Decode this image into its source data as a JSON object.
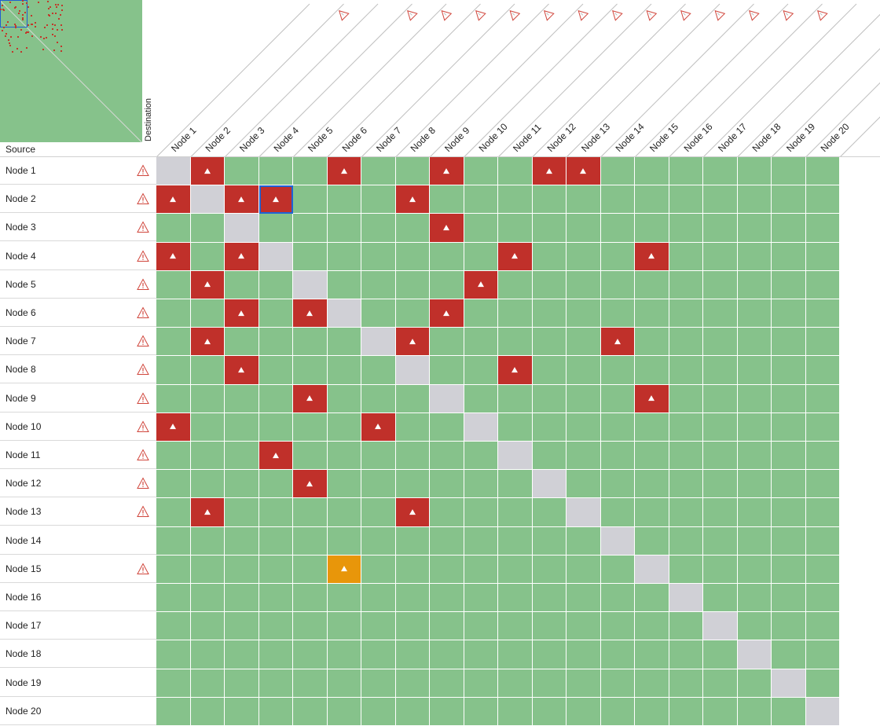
{
  "labels": {
    "source": "Source",
    "destination": "Destination"
  },
  "nodes": [
    "Node 1",
    "Node 2",
    "Node 3",
    "Node 4",
    "Node 5",
    "Node 6",
    "Node 7",
    "Node 8",
    "Node 9",
    "Node 10",
    "Node 11",
    "Node 12",
    "Node 13",
    "Node 14",
    "Node 15",
    "Node 16",
    "Node 17",
    "Node 18",
    "Node 19",
    "Node 20"
  ],
  "row_warnings": [
    true,
    true,
    true,
    true,
    true,
    true,
    true,
    true,
    true,
    true,
    true,
    true,
    true,
    false,
    true,
    false,
    false,
    false,
    false,
    false
  ],
  "column_warnings": [
    false,
    false,
    true,
    false,
    true,
    true,
    true,
    true,
    true,
    true,
    true,
    true,
    true,
    true,
    true,
    true,
    true,
    false,
    false,
    false
  ],
  "colors": {
    "ok": "#86c28b",
    "self": "#d0d0d6",
    "critical": "#c0302a",
    "warning": "#e8960a",
    "selection": "#1e63d6"
  },
  "alerts": [
    {
      "row": 1,
      "col": 2,
      "level": "critical"
    },
    {
      "row": 1,
      "col": 6,
      "level": "critical"
    },
    {
      "row": 1,
      "col": 9,
      "level": "critical"
    },
    {
      "row": 1,
      "col": 12,
      "level": "critical"
    },
    {
      "row": 1,
      "col": 13,
      "level": "critical"
    },
    {
      "row": 2,
      "col": 1,
      "level": "critical"
    },
    {
      "row": 2,
      "col": 3,
      "level": "critical"
    },
    {
      "row": 2,
      "col": 4,
      "level": "critical"
    },
    {
      "row": 2,
      "col": 8,
      "level": "critical"
    },
    {
      "row": 3,
      "col": 9,
      "level": "critical"
    },
    {
      "row": 4,
      "col": 1,
      "level": "critical"
    },
    {
      "row": 4,
      "col": 3,
      "level": "critical"
    },
    {
      "row": 4,
      "col": 11,
      "level": "critical"
    },
    {
      "row": 4,
      "col": 15,
      "level": "critical"
    },
    {
      "row": 5,
      "col": 2,
      "level": "critical"
    },
    {
      "row": 5,
      "col": 10,
      "level": "critical"
    },
    {
      "row": 6,
      "col": 3,
      "level": "critical"
    },
    {
      "row": 6,
      "col": 5,
      "level": "critical"
    },
    {
      "row": 6,
      "col": 9,
      "level": "critical"
    },
    {
      "row": 7,
      "col": 2,
      "level": "critical"
    },
    {
      "row": 7,
      "col": 8,
      "level": "critical"
    },
    {
      "row": 7,
      "col": 14,
      "level": "critical"
    },
    {
      "row": 8,
      "col": 3,
      "level": "critical"
    },
    {
      "row": 8,
      "col": 11,
      "level": "critical"
    },
    {
      "row": 9,
      "col": 5,
      "level": "critical"
    },
    {
      "row": 9,
      "col": 15,
      "level": "critical"
    },
    {
      "row": 10,
      "col": 1,
      "level": "critical"
    },
    {
      "row": 10,
      "col": 7,
      "level": "critical"
    },
    {
      "row": 11,
      "col": 4,
      "level": "critical"
    },
    {
      "row": 12,
      "col": 5,
      "level": "critical"
    },
    {
      "row": 13,
      "col": 2,
      "level": "critical"
    },
    {
      "row": 13,
      "col": 8,
      "level": "critical"
    },
    {
      "row": 15,
      "col": 6,
      "level": "warning"
    }
  ],
  "selected_cell": {
    "row": 2,
    "col": 4
  },
  "icons": {
    "row_warning": "warning-triangle-icon",
    "column_warning": "warning-triangle-icon",
    "alert": "alert-up-arrow-icon"
  }
}
